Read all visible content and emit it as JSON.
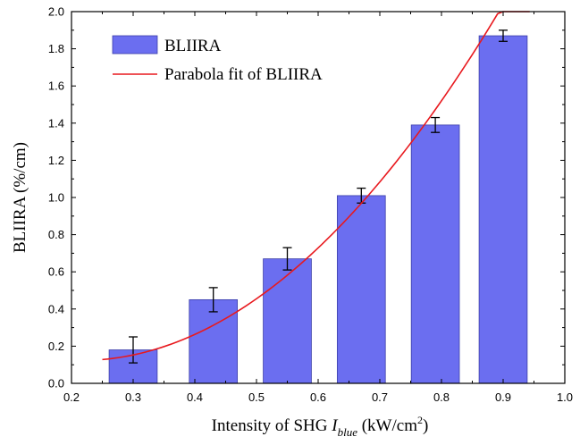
{
  "chart_data": {
    "type": "bar",
    "x": [
      0.3,
      0.43,
      0.55,
      0.67,
      0.79,
      0.9
    ],
    "series": [
      {
        "name": "BLIIRA",
        "kind": "bar",
        "values": [
          0.18,
          0.45,
          0.67,
          1.01,
          1.39,
          1.87
        ],
        "errors": [
          0.07,
          0.065,
          0.06,
          0.04,
          0.04,
          0.03
        ],
        "color": "#6b6ef0"
      },
      {
        "name": "Parabola fit of BLIIRA",
        "kind": "line",
        "coefficients": {
          "a": 4.075,
          "b": -1.7475,
          "c": 0.3102
        },
        "x_range": [
          0.25,
          0.943
        ],
        "color": "#e8191e"
      }
    ],
    "bar_width": 0.078,
    "xlabel": {
      "prefix": "Intensity of SHG ",
      "symbol": "I",
      "symbol_sub": "blue",
      "unit_open": " (kW/cm",
      "unit_sup": "2",
      "unit_close": ")"
    },
    "ylabel": "BLIIRA (%/cm)",
    "xlim": [
      0.2,
      1.0
    ],
    "ylim": [
      0.0,
      2.0
    ],
    "xticks": [
      "0.2",
      "0.3",
      "0.4",
      "0.5",
      "0.6",
      "0.7",
      "0.8",
      "0.9",
      "1.0"
    ],
    "yticks": [
      "0.0",
      "0.2",
      "0.4",
      "0.6",
      "0.8",
      "1.0",
      "1.2",
      "1.4",
      "1.6",
      "1.8",
      "2.0"
    ],
    "legend": {
      "position": "top-left",
      "entries": [
        "BLIIRA",
        "Parabola fit of BLIIRA"
      ]
    },
    "grid": false
  }
}
